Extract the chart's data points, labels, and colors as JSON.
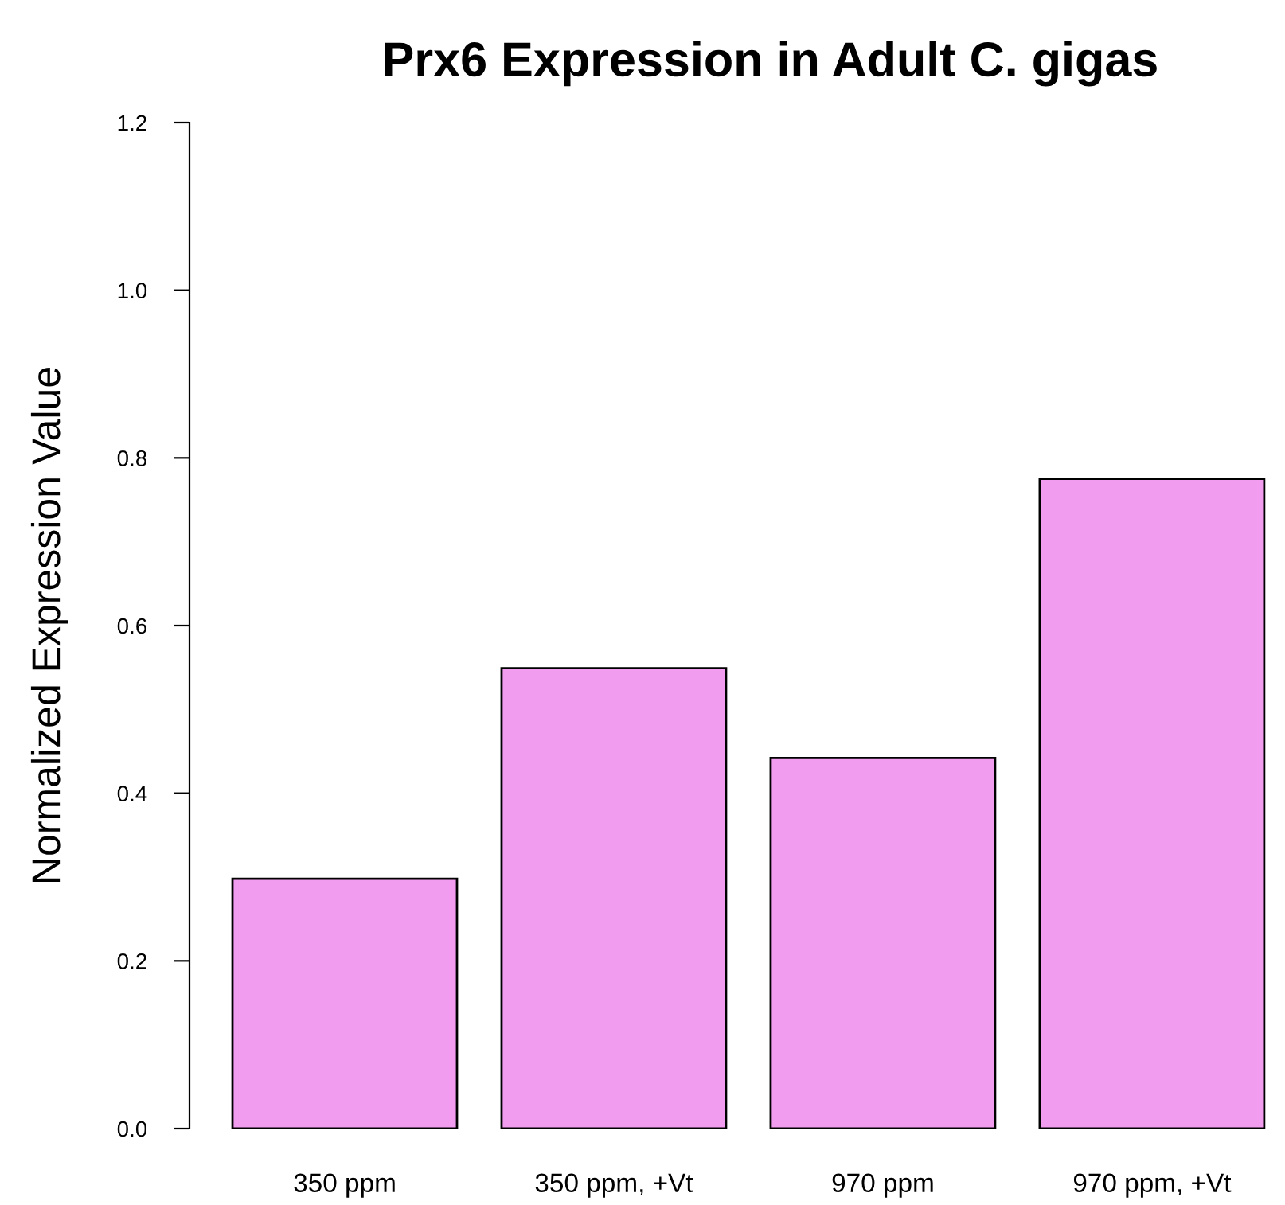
{
  "chart_data": {
    "type": "bar",
    "title": "Prx6 Expression in Adult C. gigas",
    "ylabel": "Normalized Expression Value",
    "categories": [
      "350 ppm",
      "350 ppm, +Vt",
      "970 ppm",
      "970 ppm, +Vt"
    ],
    "values": [
      0.298,
      0.549,
      0.442,
      0.775
    ],
    "color": "#f19cee",
    "ylim": [
      0,
      1.2
    ],
    "yticks": [
      {
        "value": 0,
        "label": "0.0"
      },
      0.2,
      0.4,
      0.6,
      0.8,
      {
        "value": 1,
        "label": "1.0"
      },
      1.2
    ],
    "grid": false
  }
}
